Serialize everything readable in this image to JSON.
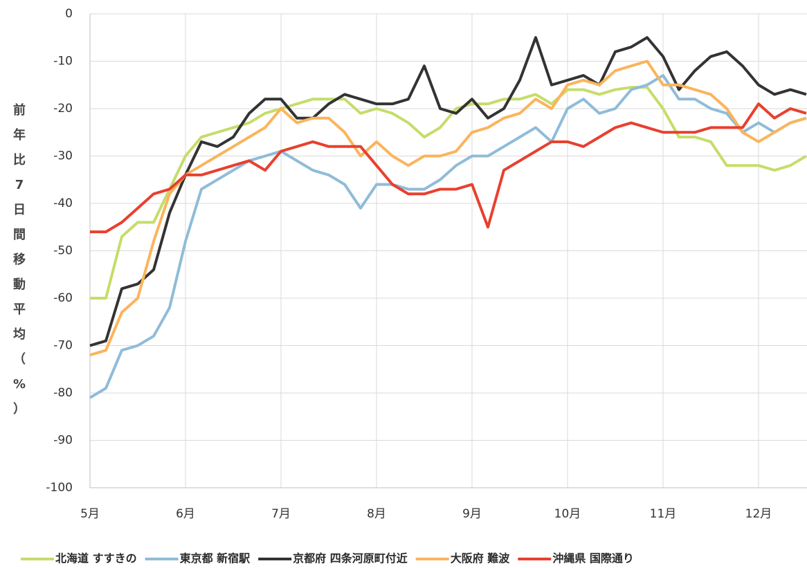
{
  "chart_data": {
    "type": "line",
    "y_label": "前年比7日間移動平均（%）",
    "categories": [
      "5月",
      null,
      null,
      null,
      null,
      null,
      "6月",
      null,
      null,
      null,
      null,
      null,
      "7月",
      null,
      null,
      null,
      null,
      null,
      "8月",
      null,
      null,
      null,
      null,
      null,
      "9月",
      null,
      null,
      null,
      null,
      null,
      "10月",
      null,
      null,
      null,
      null,
      null,
      "11月",
      null,
      null,
      null,
      null,
      null,
      "12月",
      null,
      null,
      null
    ],
    "ylim": [
      -100,
      0
    ],
    "yticks": [
      0,
      -10,
      -20,
      -30,
      -40,
      -50,
      -60,
      -70,
      -80,
      -90,
      -100
    ],
    "grid": true,
    "legend": "bottom",
    "series": [
      {
        "name": "北海道 すすきの",
        "color": "#c5dd6a",
        "values": [
          -60,
          -60,
          -47,
          -44,
          -44,
          -37,
          -30,
          -26,
          -25,
          -24,
          -23,
          -21,
          -20,
          -19,
          -18,
          -18,
          -18,
          -21,
          -20,
          -21,
          -23,
          -26,
          -24,
          -20,
          -19,
          -19,
          -18,
          -18,
          -17,
          -19,
          -16,
          -16,
          -17,
          -16,
          -15.5,
          -15.5,
          -20,
          -26,
          -26,
          -27,
          -32,
          -32,
          -32,
          -33,
          -32,
          -30
        ]
      },
      {
        "name": "東京都 新宿駅",
        "color": "#8fbcd8",
        "values": [
          -81,
          -79,
          -71,
          -70,
          -68,
          -62,
          -48,
          -37,
          -35,
          -33,
          -31,
          -30,
          -29,
          -31,
          -33,
          -34,
          -36,
          -41,
          -36,
          -36,
          -37,
          -37,
          -35,
          -32,
          -30,
          -30,
          -28,
          -26,
          -24,
          -27,
          -20,
          -18,
          -21,
          -20,
          -16,
          -15,
          -13,
          -18,
          -18,
          -20,
          -21,
          -25,
          -23,
          -25,
          -23,
          -22
        ]
      },
      {
        "name": "京都府 四条河原町付近",
        "color": "#333333",
        "values": [
          -70,
          -69,
          -58,
          -57,
          -54,
          -42,
          -34,
          -27,
          -28,
          -26,
          -21,
          -18,
          -18,
          -22,
          -22,
          -19,
          -17,
          -18,
          -19,
          -19,
          -18,
          -11,
          -20,
          -21,
          -18,
          -22,
          -20,
          -14,
          -5,
          -15,
          -14,
          -13,
          -15,
          -8,
          -7,
          -5,
          -9,
          -16,
          -12,
          -9,
          -8,
          -11,
          -15,
          -17,
          -16,
          -17
        ]
      },
      {
        "name": "大阪府 難波",
        "color": "#fbb45c",
        "values": [
          -72,
          -71,
          -63,
          -60,
          -48,
          -38,
          -34,
          -32,
          -30,
          -28,
          -26,
          -24,
          -20,
          -23,
          -22,
          -22,
          -25,
          -30,
          -27,
          -30,
          -32,
          -30,
          -30,
          -29,
          -25,
          -24,
          -22,
          -21,
          -18,
          -20,
          -15,
          -14,
          -15,
          -12,
          -11,
          -10,
          -15,
          -15,
          -16,
          -17,
          -20,
          -25,
          -27,
          -25,
          -23,
          -22
        ]
      },
      {
        "name": "沖縄県 国際通り",
        "color": "#e8402e",
        "values": [
          -46,
          -46,
          -44,
          -41,
          -38,
          -37,
          -34,
          -34,
          -33,
          -32,
          -31,
          -33,
          -29,
          -28,
          -27,
          -28,
          -28,
          -28,
          -32,
          -36,
          -38,
          -38,
          -37,
          -37,
          -36,
          -45,
          -33,
          -31,
          -29,
          -27,
          -27,
          -28,
          -26,
          -24,
          -23,
          -24,
          -25,
          -25,
          -25,
          -24,
          -24,
          -24,
          -19,
          -22,
          -20,
          -21
        ]
      }
    ]
  }
}
